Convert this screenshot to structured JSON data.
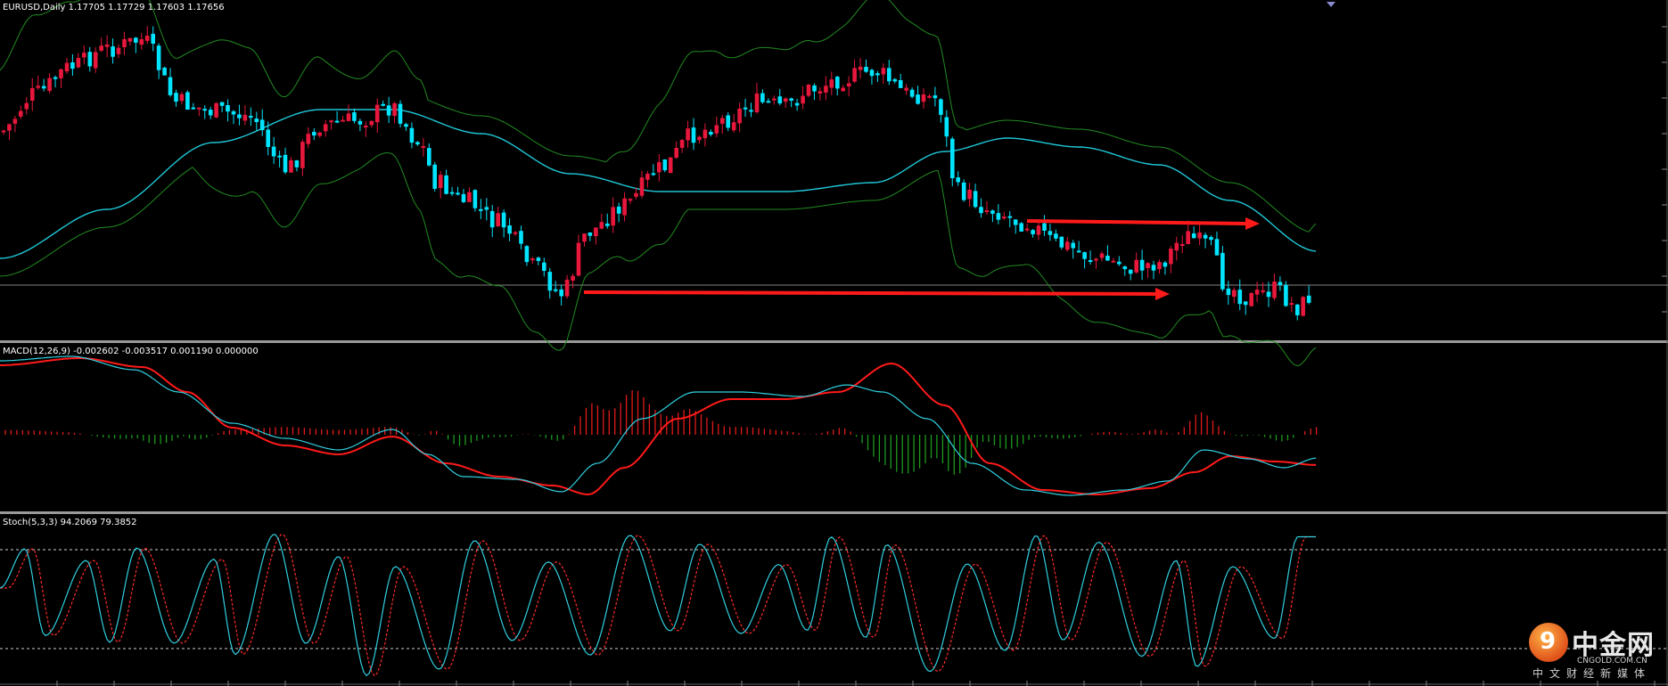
{
  "main_panel": {
    "title": "EURUSD,Daily  1.17705 1.17729 1.17603 1.17656"
  },
  "macd_panel": {
    "title": "MACD(12,26,9) -0.002602 -0.003517 0.001190 0.000000"
  },
  "stoch_panel": {
    "title": "Stoch(5,3,3) 94.2069 79.3852"
  },
  "logo": {
    "cn_name": "中金网",
    "domain": "CNGOLD.COM.CN",
    "slogan": "中文财经新媒体",
    "mark": "9"
  },
  "colors": {
    "background": "#000000",
    "bull_candle": "#e8173c",
    "bear_candle": "#00e5ff",
    "bands": "#228b22",
    "moving_average": "#1fc8d8",
    "macd_histogram_pos": "#e01b1b",
    "macd_histogram_neg": "#1e9a1e",
    "macd_line": "#30d0e0",
    "signal_line": "#ff1a1a",
    "annotation_arrow": "#ff1a1a",
    "separator": "#9a9a9a",
    "stoch_main": "#30d0e0",
    "stoch_signal": "#ff2a2a"
  }
}
